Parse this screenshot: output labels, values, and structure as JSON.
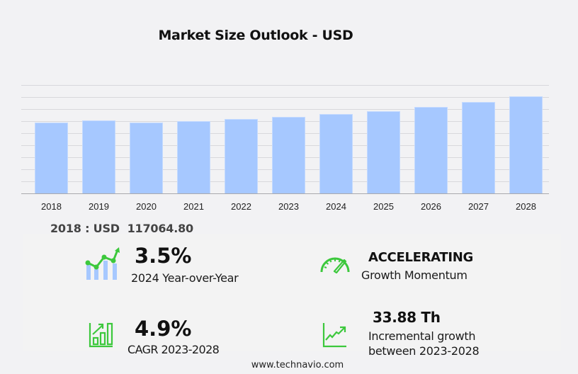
{
  "title": "Market Size Outlook  - USD",
  "colors": {
    "background": "#f2f2f4",
    "bar": "#a6c8ff",
    "accent_green": "#3cc83c",
    "gridline": "#d8d8dc"
  },
  "chart_data": {
    "type": "bar",
    "title": "Market Size Outlook  - USD",
    "xlabel": "",
    "ylabel": "USD",
    "categories": [
      "2018",
      "2019",
      "2020",
      "2021",
      "2022",
      "2023",
      "2024",
      "2025",
      "2026",
      "2027",
      "2028"
    ],
    "values": [
      117064.8,
      121200,
      117600,
      120000,
      123500,
      127000,
      131500,
      136500,
      143000,
      151200,
      160900
    ],
    "ylim": [
      0,
      180000
    ],
    "grid": true,
    "y_ticks_visible": false,
    "legend": null
  },
  "base_value": {
    "year": "2018",
    "currency": "USD",
    "value": "117064.80",
    "label": "2018 : USD  117064.80"
  },
  "stats": {
    "yoy": {
      "value": "3.5%",
      "label": "2024 Year-over-Year",
      "icon": "growth-chart-icon"
    },
    "momentum": {
      "value": "ACCELERATING",
      "label": "Growth Momentum",
      "icon": "speedometer-icon"
    },
    "cagr": {
      "value": "4.9%",
      "label": "CAGR 2023-2028",
      "icon": "bar-chart-up-icon"
    },
    "incremental": {
      "value": "33.88 Th",
      "label_line1": "Incremental growth",
      "label_line2": "between 2023-2028",
      "icon": "trend-line-icon"
    }
  },
  "footer": {
    "source": "www.technavio.com"
  }
}
